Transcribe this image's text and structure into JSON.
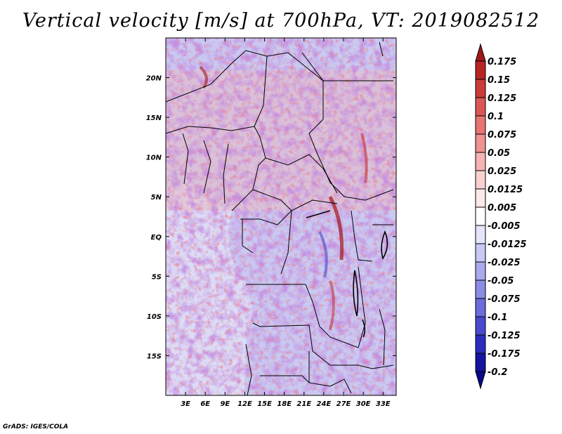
{
  "title": "Vertical velocity [m/s] at 700hPa, VT: 2019082512",
  "footer": "GrADS: IGES/COLA",
  "map": {
    "lon_labels": [
      "3E",
      "6E",
      "9E",
      "12E",
      "15E",
      "18E",
      "21E",
      "24E",
      "27E",
      "30E",
      "33E"
    ],
    "lat_labels": [
      "20N",
      "15N",
      "10N",
      "5N",
      "EQ",
      "5S",
      "10S",
      "15S"
    ],
    "lon_range": [
      0,
      35
    ],
    "lat_range": [
      -20,
      25
    ]
  },
  "colorbar": {
    "labels": [
      "0.175",
      "0.15",
      "0.125",
      "0.1",
      "0.075",
      "0.05",
      "0.025",
      "0.0125",
      "0.005",
      "-0.005",
      "-0.0125",
      "-0.025",
      "-0.05",
      "-0.075",
      "-0.1",
      "-0.125",
      "-0.175",
      "-0.2"
    ],
    "colors": [
      "#a01818",
      "#b82424",
      "#cc3a3a",
      "#dc5656",
      "#e87474",
      "#ef9292",
      "#f5b3b3",
      "#f9d0d0",
      "#fce8e8",
      "#ffffff",
      "#e4e4fa",
      "#c8c8f4",
      "#a9a9ee",
      "#8c8ce6",
      "#6c6cdc",
      "#4a4ad0",
      "#2c2cc0",
      "#1414a0",
      "#080888"
    ]
  }
}
